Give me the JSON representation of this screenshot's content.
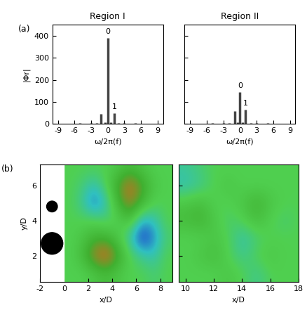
{
  "chart_data": [
    {
      "type": "stem",
      "title": "Region I",
      "panel_label": "(a)",
      "x_label": "ω/2π(f)",
      "y_label": "|Φr|",
      "x": [
        -3.0,
        -2.0,
        -1.2,
        -0.5,
        0,
        0.5,
        1.2,
        2.0,
        3.0,
        5.0,
        -5.0
      ],
      "values": [
        5,
        6,
        47,
        8,
        390,
        8,
        50,
        6,
        5,
        3,
        3
      ],
      "color": "#444444",
      "annotations": [
        {
          "x": 0,
          "y": 390,
          "text": "0"
        },
        {
          "x": 1.2,
          "y": 50,
          "text": "1"
        }
      ],
      "xlim": [
        -10,
        10
      ],
      "xticks": [
        -9,
        -6,
        -3,
        0,
        3,
        6,
        9
      ],
      "ylim": [
        0,
        450
      ],
      "yticks": [
        0,
        100,
        200,
        300,
        400
      ]
    },
    {
      "type": "stem",
      "title": "Region II",
      "x_label": "ω/2π(f)",
      "x": [
        -3.0,
        -2.0,
        -1.0,
        -0.4,
        0,
        0.4,
        1.0,
        2.0,
        3.0,
        5.0,
        -5.0
      ],
      "values": [
        4,
        5,
        60,
        7,
        145,
        7,
        65,
        5,
        4,
        3,
        3
      ],
      "color": "#444444",
      "annotations": [
        {
          "x": 0,
          "y": 145,
          "text": "0"
        },
        {
          "x": 1.0,
          "y": 65,
          "text": "1"
        }
      ],
      "xlim": [
        -10,
        10
      ],
      "xticks": [
        -9,
        -6,
        -3,
        0,
        3,
        6,
        9
      ],
      "ylim": [
        0,
        450
      ],
      "yticks": [
        0,
        100,
        200,
        300,
        400
      ],
      "tick_labels": "x"
    },
    {
      "type": "heatmap",
      "panel_label": "(b)",
      "x_label": "x/D",
      "y_label": "y/D",
      "x_edges": [
        0,
        1,
        2,
        3,
        4,
        5,
        6,
        7,
        8,
        9
      ],
      "y_edges": [
        0.5,
        1.5,
        2.5,
        3.5,
        4.5,
        5.5,
        6.5,
        7.5
      ],
      "cells": [
        [
          0,
          0,
          0.1,
          0.2,
          0.1,
          0,
          0,
          -0.1,
          0
        ],
        [
          0,
          0.2,
          0.6,
          0.8,
          0.4,
          0,
          -0.2,
          -0.3,
          0
        ],
        [
          0,
          0.1,
          0.3,
          0.3,
          0.1,
          -0.3,
          -0.8,
          -0.5,
          -0.1
        ],
        [
          0,
          0,
          0,
          -0.1,
          0,
          0.2,
          -0.4,
          -0.3,
          0
        ],
        [
          0,
          -0.2,
          -0.6,
          -0.3,
          0.3,
          0.6,
          0.3,
          0,
          0
        ],
        [
          0,
          -0.1,
          -0.3,
          0,
          0.4,
          0.7,
          0.4,
          0.1,
          0
        ],
        [
          0,
          0,
          0,
          0,
          0.1,
          0.2,
          0.1,
          0,
          0
        ]
      ],
      "clim": [
        -1,
        1
      ],
      "cylinders": [
        {
          "x": -1,
          "y": 2.7,
          "diameter": 1.8
        },
        {
          "x": -1,
          "y": 4.8,
          "diameter": 0.9
        }
      ],
      "xlim": [
        -2,
        9
      ],
      "xticks": [
        -2,
        0,
        2,
        4,
        6,
        8
      ],
      "ylim": [
        0.5,
        7.2
      ],
      "yticks": [
        2,
        4,
        6
      ]
    },
    {
      "type": "heatmap",
      "x_label": "x/D",
      "x_edges": [
        9.5,
        10.5,
        11.5,
        12.5,
        13.5,
        14.5,
        15.5,
        16.5,
        17.5,
        18.5
      ],
      "y_edges": [
        0.5,
        1.5,
        2.5,
        3.5,
        4.5,
        5.5,
        6.5,
        7.5
      ],
      "cells": [
        [
          0,
          0,
          0,
          0.1,
          0,
          -0.2,
          0,
          0,
          0
        ],
        [
          0,
          0.1,
          0.2,
          0,
          -0.2,
          0,
          0.1,
          0,
          0
        ],
        [
          0,
          0,
          0.1,
          0,
          -0.3,
          -0.1,
          0,
          0,
          0
        ],
        [
          0.2,
          0.3,
          0.1,
          -0.1,
          0,
          0.2,
          0,
          -0.1,
          0
        ],
        [
          0.1,
          0.2,
          0,
          0,
          0.1,
          0.3,
          0.1,
          0,
          0
        ],
        [
          -0.3,
          -0.2,
          0,
          0.1,
          0,
          0,
          0,
          0,
          0
        ],
        [
          -0.2,
          -0.1,
          0,
          0,
          0,
          0,
          0,
          0,
          0
        ]
      ],
      "clim": [
        -1,
        1
      ],
      "xlim": [
        9.5,
        18
      ],
      "xticks": [
        10,
        12,
        14,
        16,
        18
      ],
      "ylim": [
        0.5,
        7.2
      ],
      "yticks": [
        2,
        4,
        6
      ],
      "tick_labels": "x"
    }
  ]
}
